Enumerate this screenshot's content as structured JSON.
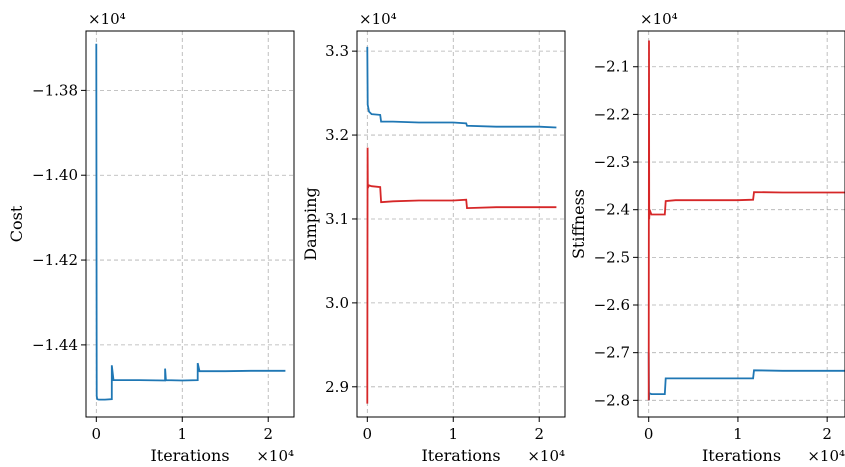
{
  "chart_data": [
    {
      "type": "line",
      "xlabel": "Iterations",
      "ylabel": "Cost",
      "x_multiplier": "×10⁴",
      "y_multiplier": "×10⁴",
      "xlim": [
        -0.12,
        2.3
      ],
      "ylim": [
        -1.457,
        -1.366
      ],
      "xticks": [
        0,
        1,
        2
      ],
      "xtick_labels": [
        "0",
        "1",
        "2"
      ],
      "yticks": [
        -1.38,
        -1.4,
        -1.42,
        -1.44
      ],
      "ytick_labels": [
        "−1.38",
        "−1.40",
        "−1.42",
        "−1.44"
      ],
      "grid": true,
      "series": [
        {
          "color": "#1f77b4",
          "x": [
            0,
            0.005,
            0.01,
            0.03,
            0.1,
            0.18,
            0.18,
            0.2,
            0.5,
            0.8,
            0.8,
            0.81,
            1.0,
            1.18,
            1.18,
            1.2,
            1.5,
            1.8,
            2.0,
            2.2
          ],
          "y": [
            -1.369,
            -1.452,
            -1.4528,
            -1.4529,
            -1.4529,
            -1.4528,
            -1.4448,
            -1.4483,
            -1.4483,
            -1.4484,
            -1.4456,
            -1.4483,
            -1.4484,
            -1.4483,
            -1.4443,
            -1.4462,
            -1.4462,
            -1.4461,
            -1.4461,
            -1.4461
          ]
        }
      ]
    },
    {
      "type": "line",
      "xlabel": "Iterations",
      "ylabel": "Damping",
      "x_multiplier": "×10⁴",
      "y_multiplier": "×10⁴",
      "xlim": [
        -0.12,
        2.3
      ],
      "ylim": [
        2.864,
        3.324
      ],
      "xticks": [
        0,
        1,
        2
      ],
      "xtick_labels": [
        "0",
        "1",
        "2"
      ],
      "yticks": [
        2.9,
        3.0,
        3.1,
        3.2,
        3.3
      ],
      "ytick_labels": [
        "2.9",
        "3.0",
        "3.1",
        "3.2",
        "3.3"
      ],
      "grid": true,
      "series": [
        {
          "color": "#1f77b4",
          "x": [
            0,
            0.005,
            0.02,
            0.05,
            0.15,
            0.16,
            0.3,
            0.6,
            1.0,
            1.15,
            1.16,
            1.5,
            2.0,
            2.2
          ],
          "y": [
            3.305,
            3.236,
            3.228,
            3.225,
            3.224,
            3.216,
            3.216,
            3.215,
            3.215,
            3.214,
            3.211,
            3.21,
            3.21,
            3.209
          ]
        },
        {
          "color": "#d62728",
          "x": [
            0,
            0.003,
            0.006,
            0.01,
            0.02,
            0.05,
            0.15,
            0.16,
            0.3,
            0.6,
            1.0,
            1.15,
            1.16,
            1.5,
            2.0,
            2.2
          ],
          "y": [
            2.88,
            3.185,
            3.14,
            3.138,
            3.14,
            3.139,
            3.138,
            3.12,
            3.121,
            3.122,
            3.122,
            3.123,
            3.113,
            3.114,
            3.114,
            3.114
          ]
        }
      ]
    },
    {
      "type": "line",
      "xlabel": "Iterations",
      "ylabel": "Stiffness",
      "x_multiplier": "×10⁴",
      "y_multiplier": "×10⁴",
      "xlim": [
        -0.12,
        2.2
      ],
      "ylim": [
        -2.835,
        -2.025
      ],
      "xticks": [
        0,
        1,
        2
      ],
      "xtick_labels": [
        "0",
        "1",
        "2"
      ],
      "yticks": [
        -2.1,
        -2.2,
        -2.3,
        -2.4,
        -2.5,
        -2.6,
        -2.7,
        -2.8
      ],
      "ytick_labels": [
        "−2.1",
        "−2.2",
        "−2.3",
        "−2.4",
        "−2.5",
        "−2.6",
        "−2.7",
        "−2.8"
      ],
      "grid": true,
      "series": [
        {
          "color": "#1f77b4",
          "x": [
            0,
            0.003,
            0.006,
            0.03,
            0.1,
            0.18,
            0.19,
            0.5,
            1.0,
            1.17,
            1.18,
            1.5,
            2.0,
            2.2
          ],
          "y": [
            -2.7,
            -2.8,
            -2.785,
            -2.787,
            -2.787,
            -2.787,
            -2.754,
            -2.754,
            -2.754,
            -2.754,
            -2.737,
            -2.738,
            -2.738,
            -2.738
          ]
        },
        {
          "color": "#d62728",
          "x": [
            0,
            0.003,
            0.006,
            0.01,
            0.03,
            0.1,
            0.18,
            0.19,
            0.3,
            0.6,
            1.0,
            1.17,
            1.18,
            1.5,
            2.0,
            2.2
          ],
          "y": [
            -2.8,
            -2.045,
            -2.42,
            -2.4,
            -2.41,
            -2.41,
            -2.41,
            -2.382,
            -2.38,
            -2.38,
            -2.38,
            -2.379,
            -2.363,
            -2.364,
            -2.364,
            -2.364
          ]
        }
      ]
    }
  ]
}
